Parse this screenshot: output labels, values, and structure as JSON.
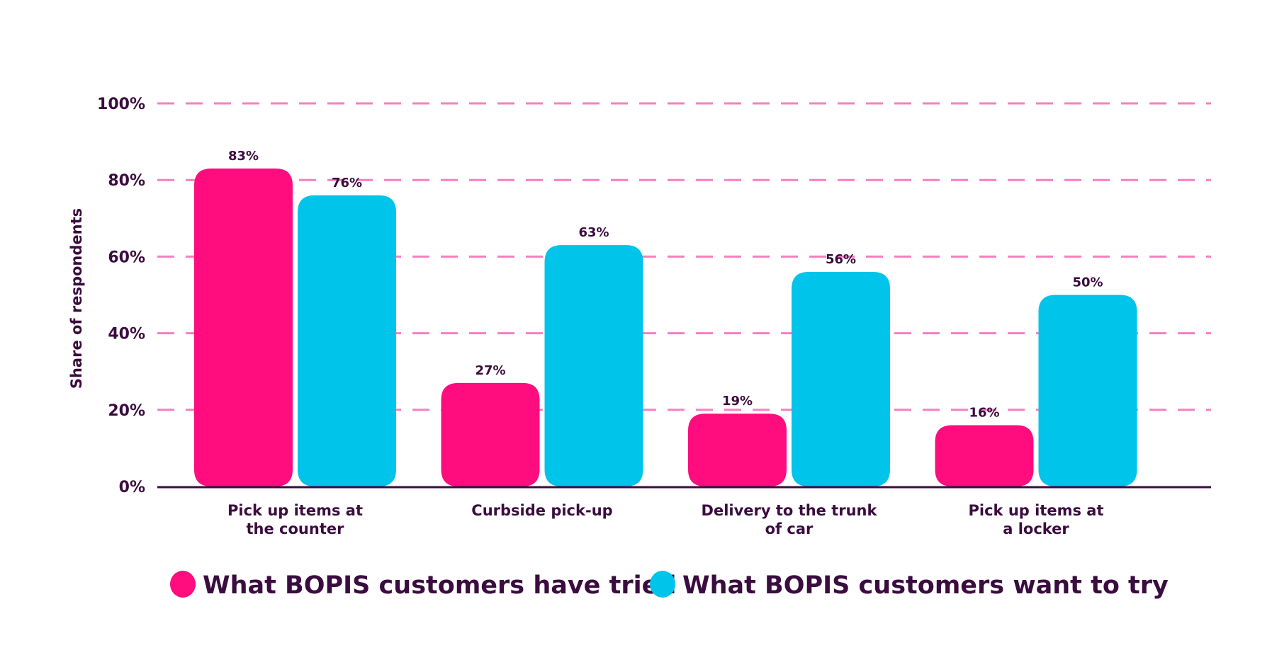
{
  "chart_data": {
    "type": "bar",
    "title": "",
    "xlabel": "",
    "ylabel": "Share of respondents",
    "ylim": [
      0,
      100
    ],
    "yticks": [
      "0%",
      "20%",
      "40%",
      "60%",
      "80%",
      "100%"
    ],
    "grid": true,
    "legend_position": "bottom",
    "categories": [
      [
        "Pick up items at",
        "the counter"
      ],
      [
        "Curbside pick-up"
      ],
      [
        "Delivery to the trunk",
        "of car"
      ],
      [
        "Pick up items at",
        "a locker"
      ]
    ],
    "series": [
      {
        "name": "What BOPIS customers have tried",
        "color": "#ff0c7f",
        "values": [
          83,
          27,
          19,
          16
        ],
        "labels": [
          "83%",
          "27%",
          "19%",
          "16%"
        ]
      },
      {
        "name": "What BOPIS customers want to try",
        "color": "#00c4ea",
        "values": [
          76,
          63,
          56,
          50
        ],
        "labels": [
          "76%",
          "63%",
          "56%",
          "50%"
        ]
      }
    ],
    "colors": {
      "text": "#3b0c3f",
      "grid": "#f77fbf",
      "axis": "#3b0c3f"
    }
  }
}
